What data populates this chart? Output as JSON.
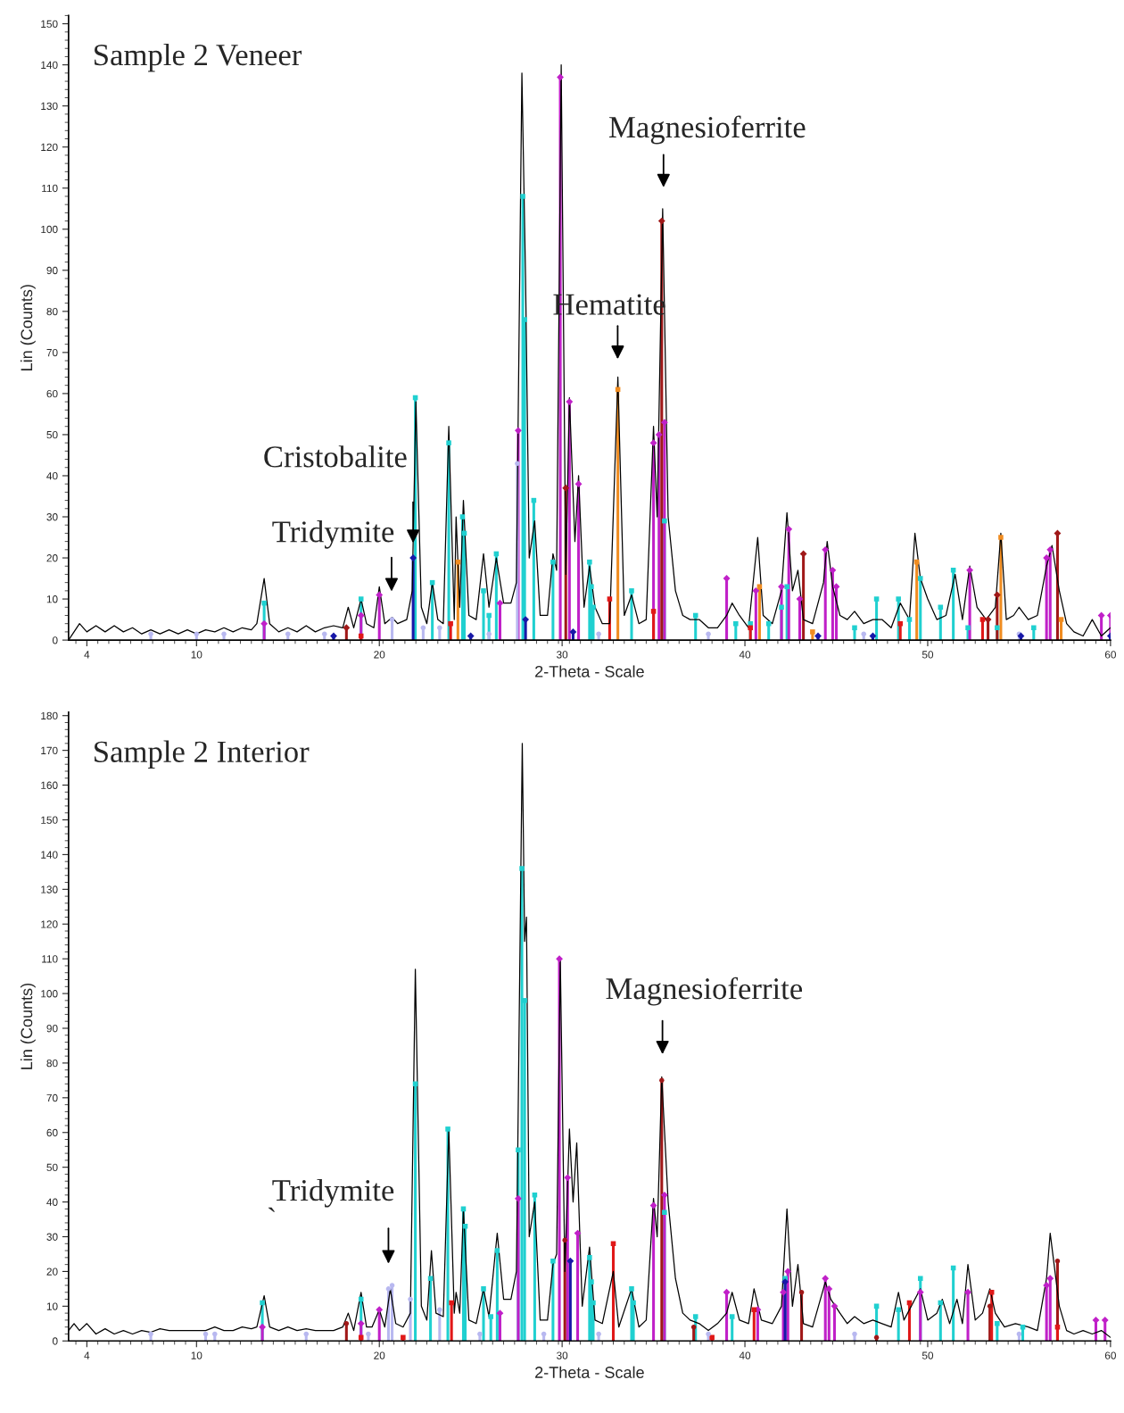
{
  "chart_data": [
    {
      "type": "line",
      "title": "Sample 2 Veneer",
      "xlabel": "2-Theta - Scale",
      "ylabel": "Lin (Counts)",
      "xlim": [
        3,
        60
      ],
      "xticks": [
        4,
        10,
        20,
        30,
        40,
        50,
        60
      ],
      "ylim": [
        0,
        152
      ],
      "yticks": [
        0,
        10,
        20,
        30,
        40,
        50,
        60,
        70,
        80,
        90,
        100,
        110,
        120,
        130,
        140,
        150
      ],
      "grid": false,
      "legend": false,
      "annotations": [
        "Magnesioferrite",
        "Hematite",
        {
          "text": "Cristobalite",
          "x": 21.85,
          "y": 20
        },
        "Tridymite"
      ],
      "series": [
        {
          "type": "line",
          "color": "#000000",
          "marker": "none",
          "x": [
            3.0,
            3.3,
            3.6,
            4,
            4.5,
            5,
            5.5,
            6,
            6.5,
            7,
            7.5,
            8,
            8.5,
            9,
            9.5,
            10,
            10.5,
            11,
            11.5,
            12,
            12.5,
            13,
            13.3,
            13.7,
            14.0,
            14.5,
            15,
            15.5,
            16,
            16.5,
            17,
            17.5,
            18,
            18.3,
            18.6,
            19.0,
            19.3,
            19.7,
            20.0,
            20.3,
            20.7,
            21.0,
            21.5,
            21.8,
            22.0,
            22.3,
            22.6,
            22.9,
            23.2,
            23.5,
            23.8,
            24.1,
            24.2,
            24.4,
            24.6,
            24.9,
            25.3,
            25.7,
            26.0,
            26.4,
            26.8,
            27.2,
            27.5,
            27.8,
            28.0,
            28.2,
            28.5,
            28.8,
            29.2,
            29.5,
            29.7,
            29.95,
            30.2,
            30.4,
            30.7,
            30.9,
            31.2,
            31.5,
            31.8,
            32.2,
            32.6,
            33.05,
            33.4,
            33.8,
            34.2,
            34.6,
            35.0,
            35.2,
            35.5,
            35.8,
            36.2,
            36.6,
            37,
            37.5,
            38,
            38.5,
            39.0,
            39.3,
            39.7,
            40.2,
            40.7,
            41.0,
            41.5,
            42.0,
            42.3,
            42.6,
            42.9,
            43.2,
            43.7,
            44.3,
            44.5,
            44.8,
            45.2,
            45.6,
            46.0,
            46.5,
            47,
            47.5,
            48,
            48.5,
            49.0,
            49.3,
            49.6,
            50.0,
            50.5,
            51,
            51.5,
            51.9,
            52.3,
            52.7,
            53.2,
            53.7,
            54.0,
            54.3,
            54.7,
            55.0,
            55.5,
            56,
            56.5,
            56.8,
            57.2,
            57.6,
            58,
            58.5,
            59,
            59.5,
            60
          ],
          "values": [
            0,
            2,
            4,
            2,
            3.5,
            2,
            3.5,
            2,
            3,
            1.5,
            2.5,
            1.5,
            2.5,
            1.5,
            2.5,
            1.5,
            2.5,
            2,
            3,
            2,
            3,
            2.5,
            4,
            15,
            4,
            2,
            3,
            2,
            3.5,
            2,
            3,
            3.5,
            3,
            8,
            3,
            10,
            4,
            3,
            13,
            4,
            5.5,
            4,
            5,
            12,
            58,
            8,
            4,
            14,
            5,
            4,
            52,
            5,
            30,
            8,
            34,
            6,
            5,
            21,
            8,
            20,
            9,
            9,
            14,
            138,
            88,
            20,
            29,
            6,
            6,
            21,
            17,
            140,
            16,
            59,
            24,
            40,
            8,
            18,
            8,
            4,
            4,
            64,
            6,
            11,
            4,
            5,
            52,
            30,
            105,
            30,
            12,
            6,
            5,
            5,
            3,
            3,
            6,
            9,
            6,
            3,
            25,
            6,
            4,
            12,
            31,
            12,
            17,
            5,
            4,
            14,
            24,
            13,
            6,
            5,
            7,
            4,
            5,
            5,
            3,
            9,
            5,
            26,
            15,
            10,
            5,
            6,
            16,
            5,
            18,
            8,
            5,
            8,
            26,
            5,
            6,
            8,
            5,
            6,
            18,
            23,
            12,
            4,
            2,
            1,
            5,
            1,
            3
          ]
        },
        {
          "type": "lollipop",
          "color": "#20d0d0",
          "marker": "square",
          "x": [
            13.7,
            19.0,
            21.97,
            22.9,
            23.8,
            24.55,
            24.65,
            25.7,
            26.0,
            26.4,
            27.85,
            27.95,
            28.45,
            29.5,
            31.5,
            31.6,
            31.7,
            33.8,
            35.6,
            37.3,
            39.5,
            40.3,
            41.3,
            42.0,
            42.3,
            46.0,
            47.2,
            48.4,
            49.0,
            49.6,
            50.7,
            51.4,
            52.2,
            53.8,
            55.8
          ],
          "values": [
            9,
            10,
            59,
            14,
            48,
            30,
            26,
            12,
            6,
            21,
            108,
            78,
            34,
            19,
            19,
            13,
            8,
            12,
            29,
            6,
            4,
            4,
            4,
            8,
            13,
            3,
            10,
            10,
            5,
            15,
            8,
            17,
            3,
            3,
            3
          ]
        },
        {
          "type": "lollipop",
          "color": "#c020c8",
          "marker": "diamond",
          "x": [
            13.7,
            19.0,
            20.0,
            26.6,
            27.6,
            29.9,
            30.4,
            30.9,
            35.0,
            35.3,
            35.6,
            39.0,
            40.6,
            42.0,
            42.4,
            43.0,
            44.4,
            44.8,
            45.0,
            52.3,
            56.5,
            56.7,
            59.5,
            60
          ],
          "values": [
            4,
            6,
            11,
            9,
            51,
            137,
            58,
            38,
            48,
            50,
            53,
            15,
            12,
            13,
            27,
            10,
            22,
            17,
            13,
            17,
            20,
            22,
            6,
            6
          ]
        },
        {
          "type": "lollipop",
          "color": "#a01818",
          "marker": "diamond",
          "x": [
            18.2,
            30.2,
            35.45,
            43.2,
            53.3,
            53.8,
            57.1
          ],
          "values": [
            3,
            37,
            102,
            21,
            5,
            11,
            26
          ]
        },
        {
          "type": "lollipop",
          "color": "#f08c20",
          "marker": "square",
          "x": [
            24.3,
            33.05,
            40.8,
            43.7,
            49.4,
            54.0,
            57.3
          ],
          "values": [
            19,
            61,
            13,
            2,
            19,
            25,
            5
          ]
        },
        {
          "type": "lollipop",
          "color": "#e01818",
          "marker": "square",
          "x": [
            19.0,
            23.9,
            32.6,
            35.0,
            40.3,
            48.5,
            53.0
          ],
          "values": [
            1,
            4,
            10,
            7,
            3,
            4,
            5
          ]
        },
        {
          "type": "lollipop",
          "color": "#b8b8f0",
          "marker": "circle",
          "x": [
            7.5,
            10,
            11.5,
            15,
            17,
            20.7,
            22.4,
            23.3,
            26.0,
            27.55,
            32,
            38,
            46.5,
            55
          ],
          "values": [
            1.5,
            1.5,
            1.5,
            1.5,
            1.5,
            5,
            3,
            3,
            1.5,
            43,
            1.5,
            1.5,
            1.5,
            1.5
          ]
        },
        {
          "type": "lollipop",
          "color": "#1818a8",
          "marker": "diamond",
          "x": [
            17.5,
            21.85,
            25.0,
            28.0,
            30.6,
            44.0,
            47.0,
            55.1,
            60
          ],
          "values": [
            1,
            20,
            1,
            5,
            2,
            1,
            1,
            1,
            1
          ]
        }
      ]
    },
    {
      "type": "line",
      "title": "Sample 2 Interior",
      "xlabel": "2-Theta - Scale",
      "ylabel": "Lin (Counts)",
      "xlim": [
        3,
        60
      ],
      "xticks": [
        4,
        10,
        20,
        30,
        40,
        50,
        60
      ],
      "ylim": [
        0,
        181
      ],
      "yticks": [
        0,
        10,
        20,
        30,
        40,
        50,
        60,
        70,
        80,
        90,
        100,
        110,
        120,
        130,
        140,
        150,
        160,
        170,
        180
      ],
      "grid": false,
      "legend": false,
      "annotations": [
        "Magnesioferrite",
        "Tridymite",
        "`"
      ],
      "series": [
        {
          "type": "line",
          "color": "#000000",
          "marker": "none",
          "x": [
            3.0,
            3.3,
            3.6,
            4.0,
            4.5,
            5,
            5.5,
            6,
            6.5,
            7,
            7.5,
            8,
            8.5,
            9,
            9.5,
            10,
            10.5,
            11,
            11.5,
            12,
            12.5,
            13,
            13.3,
            13.7,
            14,
            14.5,
            15,
            15.5,
            16,
            16.5,
            17,
            17.5,
            18,
            18.3,
            18.6,
            19.0,
            19.3,
            19.6,
            20.0,
            20.3,
            20.6,
            20.9,
            21.3,
            21.7,
            21.97,
            22.3,
            22.6,
            22.85,
            23.1,
            23.5,
            23.8,
            24.1,
            24.2,
            24.4,
            24.6,
            24.9,
            25.3,
            25.7,
            26.0,
            26.45,
            26.8,
            27.2,
            27.5,
            27.82,
            27.95,
            28.05,
            28.2,
            28.5,
            28.8,
            29.2,
            29.5,
            29.7,
            29.9,
            30.15,
            30.4,
            30.6,
            30.8,
            31.1,
            31.5,
            31.8,
            32.2,
            32.8,
            33.1,
            33.8,
            34.2,
            34.6,
            35.0,
            35.2,
            35.45,
            35.8,
            36.2,
            36.6,
            37,
            37.5,
            38,
            38.5,
            39.0,
            39.3,
            39.7,
            40.2,
            40.5,
            40.9,
            41.5,
            42.0,
            42.3,
            42.6,
            42.9,
            43.2,
            43.7,
            44.4,
            44.7,
            45.2,
            45.6,
            46.0,
            46.5,
            47,
            47.5,
            48,
            48.4,
            48.7,
            49.1,
            49.3,
            49.6,
            50.0,
            50.5,
            50.8,
            51.2,
            51.6,
            51.9,
            52.2,
            52.6,
            53.0,
            53.4,
            53.7,
            54.2,
            54.8,
            55.5,
            56.0,
            56.5,
            56.7,
            57.2,
            57.6,
            58,
            58.5,
            59,
            59.5,
            60
          ],
          "values": [
            3,
            5,
            3,
            5,
            2,
            3.5,
            2,
            3,
            2,
            3,
            2.5,
            3.5,
            3,
            3,
            3,
            3,
            3,
            4,
            3,
            3,
            4,
            3.5,
            4,
            13,
            4,
            3,
            4,
            3,
            3.5,
            3,
            3,
            3,
            4,
            8,
            3,
            14,
            4,
            4,
            9,
            4,
            15,
            5,
            4,
            8,
            107,
            10,
            6,
            26,
            8,
            7,
            61,
            8,
            14,
            8,
            38,
            6,
            5,
            15,
            7,
            31,
            12,
            12,
            20,
            172,
            115,
            122,
            30,
            40,
            6,
            6,
            22,
            25,
            110,
            20,
            61,
            40,
            57,
            10,
            27,
            6,
            5,
            20,
            4,
            15,
            4,
            6,
            41,
            30,
            76,
            40,
            18,
            8,
            6,
            5,
            3,
            5,
            8,
            14,
            6,
            5,
            15,
            6,
            5,
            10,
            38,
            10,
            22,
            5,
            4,
            17,
            12,
            8,
            5,
            7,
            5,
            6,
            5,
            4,
            14,
            6,
            10,
            12,
            15,
            6,
            8,
            12,
            5,
            12,
            5,
            22,
            6,
            8,
            15,
            8,
            4,
            5,
            4,
            3,
            18,
            31,
            10,
            3,
            2,
            3,
            2,
            3,
            1
          ]
        },
        {
          "type": "lollipop",
          "color": "#20d0d0",
          "marker": "square",
          "x": [
            13.6,
            19.0,
            21.97,
            22.8,
            23.75,
            24.6,
            24.7,
            25.7,
            26.1,
            26.45,
            27.6,
            27.8,
            27.95,
            28.5,
            29.5,
            31.5,
            31.6,
            31.7,
            33.8,
            33.9,
            35.6,
            37.3,
            39.3,
            42.2,
            47.2,
            48.4,
            49.6,
            50.7,
            51.4,
            53.8,
            55.2
          ],
          "values": [
            11,
            12,
            74,
            18,
            61,
            38,
            33,
            15,
            7,
            26,
            55,
            136,
            98,
            42,
            23,
            24,
            17,
            11,
            15,
            11,
            37,
            7,
            7,
            18,
            10,
            9,
            18,
            11,
            21,
            5,
            4
          ]
        },
        {
          "type": "lollipop",
          "color": "#c020c8",
          "marker": "diamond",
          "x": [
            13.6,
            19.0,
            20.0,
            26.6,
            27.6,
            29.85,
            30.3,
            30.85,
            35.0,
            35.6,
            39.0,
            40.7,
            42.1,
            42.35,
            44.4,
            44.6,
            44.9,
            49.6,
            52.2,
            56.5,
            56.7,
            59.2,
            59.7
          ],
          "values": [
            4,
            5,
            9,
            8,
            41,
            110,
            47,
            31,
            39,
            42,
            14,
            9,
            14,
            20,
            18,
            15,
            10,
            14,
            14,
            16,
            18,
            6,
            6
          ]
        },
        {
          "type": "lollipop",
          "color": "#a01818",
          "marker": "circle",
          "x": [
            18.2,
            30.15,
            35.45,
            37.2,
            43.1,
            47.2,
            53.4,
            57.1
          ],
          "values": [
            5,
            29,
            75,
            4,
            14,
            1,
            10,
            23
          ]
        },
        {
          "type": "lollipop",
          "color": "#e01818",
          "marker": "square",
          "x": [
            19.0,
            21.3,
            23.95,
            32.8,
            38.2,
            40.5,
            49.0,
            53.5,
            57.1
          ],
          "values": [
            1,
            1,
            11,
            28,
            1,
            9,
            11,
            14,
            4
          ]
        },
        {
          "type": "lollipop",
          "color": "#b8b8f0",
          "marker": "circle",
          "x": [
            7.5,
            10.5,
            11,
            16,
            19.4,
            20.5,
            20.7,
            21.7,
            23.3,
            25.5,
            29,
            32,
            38,
            46,
            55
          ],
          "values": [
            2,
            2,
            2,
            2,
            2,
            15,
            16,
            12,
            9,
            2,
            2,
            2,
            2,
            2,
            2
          ]
        },
        {
          "type": "lollipop",
          "color": "#1818a8",
          "marker": "diamond",
          "x": [
            30.45,
            42.2
          ],
          "values": [
            23,
            17
          ]
        }
      ]
    }
  ]
}
